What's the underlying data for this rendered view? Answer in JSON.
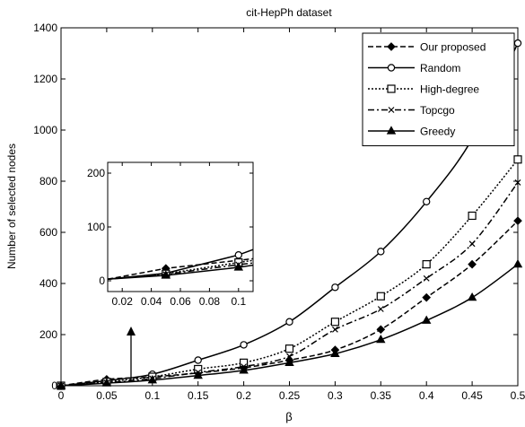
{
  "chart_data": {
    "type": "line",
    "title": "cit-HepPh dataset",
    "xlabel": "β",
    "ylabel": "Number of selected nodes",
    "xlim": [
      0,
      0.5
    ],
    "ylim": [
      0,
      1400
    ],
    "x": [
      0,
      0.05,
      0.1,
      0.15,
      0.2,
      0.25,
      0.3,
      0.35,
      0.4,
      0.45,
      0.5
    ],
    "x_ticks": [
      0,
      0.05,
      0.1,
      0.15,
      0.2,
      0.25,
      0.3,
      0.35,
      0.4,
      0.45,
      0.5
    ],
    "y_ticks": [
      0,
      200,
      400,
      600,
      800,
      1000,
      1200,
      1400
    ],
    "grid": false,
    "legend_position": "top-right",
    "series": [
      {
        "name": "Our proposed",
        "line_style": "dashed",
        "marker": "diamond",
        "values": [
          0,
          25,
          35,
          50,
          70,
          100,
          140,
          220,
          345,
          475,
          645
        ]
      },
      {
        "name": "Random",
        "line_style": "solid",
        "marker": "circle",
        "values": [
          0,
          20,
          45,
          100,
          160,
          250,
          385,
          525,
          720,
          965,
          1340
        ]
      },
      {
        "name": "High-degree",
        "line_style": "dotted",
        "marker": "square",
        "values": [
          0,
          15,
          35,
          65,
          90,
          145,
          250,
          350,
          475,
          665,
          885
        ]
      },
      {
        "name": "Topcgo",
        "line_style": "dashdot",
        "marker": "x",
        "values": [
          0,
          12,
          28,
          52,
          75,
          115,
          220,
          300,
          420,
          555,
          795
        ]
      },
      {
        "name": "Greedy",
        "line_style": "solid",
        "marker": "triangle",
        "values": [
          0,
          10,
          22,
          40,
          60,
          90,
          125,
          180,
          255,
          345,
          475
        ]
      }
    ],
    "inset": {
      "xlim": [
        0.01,
        0.11
      ],
      "ylim": [
        -20,
        220
      ],
      "x_ticks": [
        0.02,
        0.04,
        0.06,
        0.08,
        0.1
      ],
      "y_ticks": [
        0,
        100,
        200
      ],
      "x": [
        0.01,
        0.05,
        0.1,
        0.11
      ],
      "series": [
        {
          "name": "Our proposed",
          "values": [
            3,
            23,
            38,
            41
          ]
        },
        {
          "name": "Random",
          "values": [
            3,
            14,
            48,
            58
          ]
        },
        {
          "name": "High-degree",
          "values": [
            3,
            13,
            34,
            38
          ]
        },
        {
          "name": "Topcgo",
          "values": [
            3,
            12,
            30,
            33
          ]
        },
        {
          "name": "Greedy",
          "values": [
            3,
            10,
            25,
            29
          ]
        }
      ]
    }
  }
}
